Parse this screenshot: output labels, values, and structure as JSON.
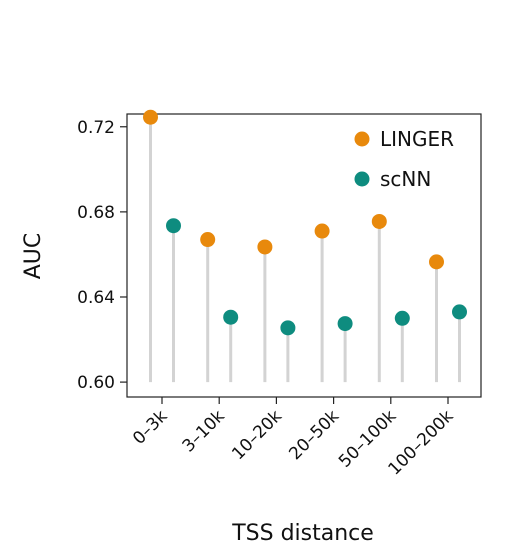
{
  "chart_data": {
    "type": "lollipop",
    "title": "",
    "xlabel": "TSS distance",
    "ylabel": "AUC",
    "categories": [
      "0–3k",
      "3–10k",
      "10–20k",
      "20–50k",
      "50–100k",
      "100–200k"
    ],
    "ylim": [
      0.593,
      0.726
    ],
    "baseline": 0.6,
    "yticks": [
      0.6,
      0.64,
      0.68,
      0.72
    ],
    "ytick_labels": [
      "0.60",
      "0.64",
      "0.68",
      "0.72"
    ],
    "grid": false,
    "legend_position": "top-right",
    "series": [
      {
        "name": "LINGER",
        "color": "#E8890C",
        "values": [
          0.7245,
          0.667,
          0.6635,
          0.671,
          0.6755,
          0.6565
        ]
      },
      {
        "name": "scNN",
        "color": "#0E8C7F",
        "values": [
          0.6735,
          0.6305,
          0.6255,
          0.6275,
          0.63,
          0.633
        ]
      }
    ],
    "stem_color": "#d3d3d3"
  }
}
